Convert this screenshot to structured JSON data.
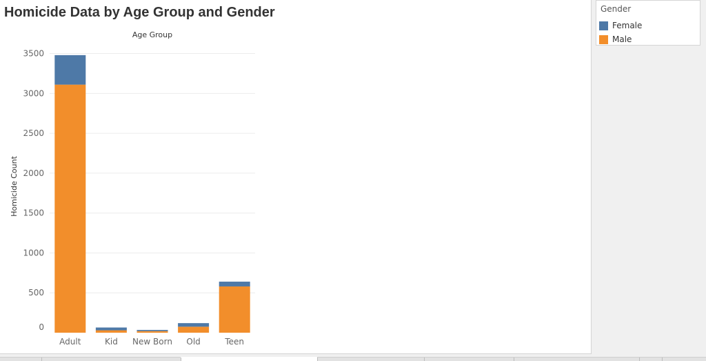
{
  "chart_data": {
    "type": "bar",
    "stacked": true,
    "title": "Homicide Data by Age Group and Gender",
    "column_header": "Age Group",
    "ylabel": "Homicide Count",
    "categories": [
      "Adult",
      "Kid",
      "New Born",
      "Old",
      "Teen"
    ],
    "series": [
      {
        "name": "Male",
        "color": "#f28e2b",
        "values": [
          3110,
          30,
          20,
          75,
          580
        ]
      },
      {
        "name": "Female",
        "color": "#4e79a7",
        "values": [
          370,
          35,
          15,
          45,
          60
        ]
      }
    ],
    "ylim": [
      0,
      3600
    ],
    "yticks": [
      0,
      500,
      1000,
      1500,
      2000,
      2500,
      3000,
      3500
    ],
    "grid": true
  },
  "legend": {
    "title": "Gender",
    "items": [
      {
        "label": "Female",
        "color": "#4e79a7"
      },
      {
        "label": "Male",
        "color": "#f28e2b"
      }
    ]
  }
}
